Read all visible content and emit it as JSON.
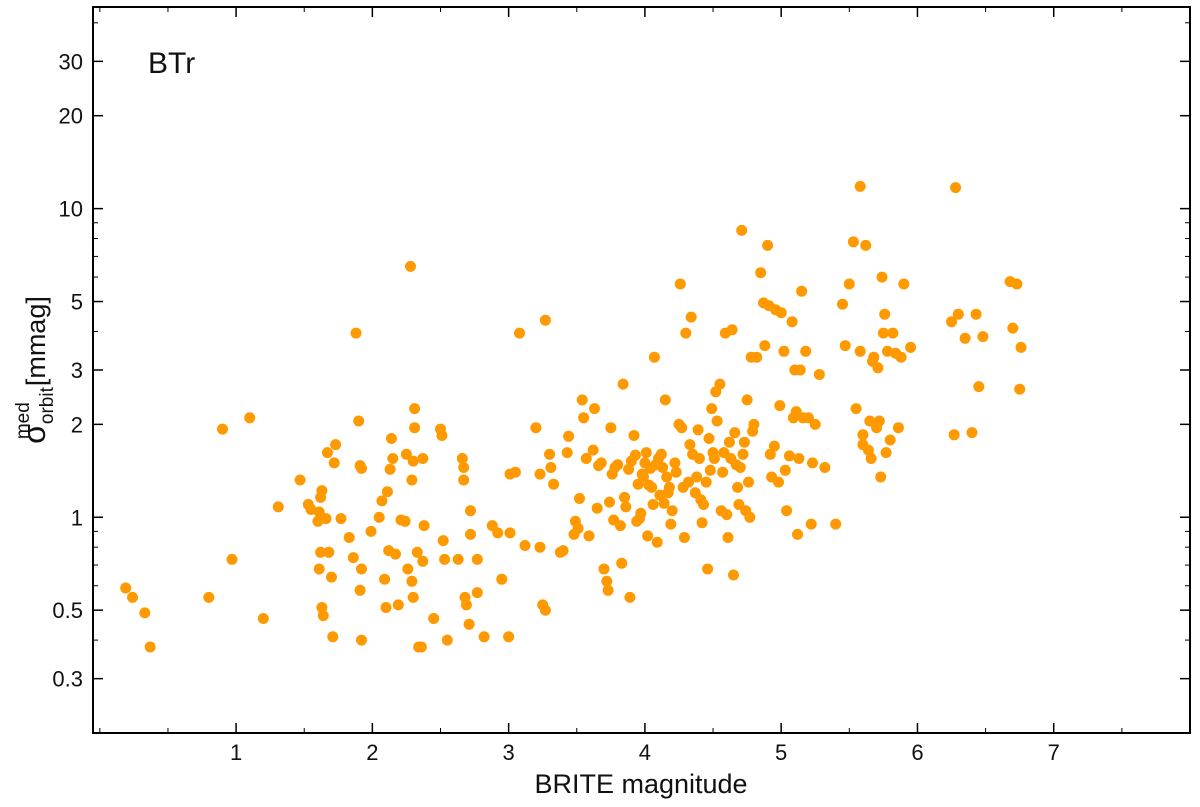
{
  "chart_data": {
    "type": "scatter",
    "panel_label": "BTr",
    "xlabel": "BRITE magnitude",
    "ylabel": {
      "symbol": "σ",
      "sup": "med",
      "sub": "orbit",
      "unit": "[mmag]"
    },
    "y_scale": "log",
    "xlim": [
      -0.05,
      8.0
    ],
    "ylim": [
      0.2,
      45
    ],
    "x_ticks": [
      1,
      2,
      3,
      4,
      5,
      6,
      7
    ],
    "y_ticks": [
      0.3,
      0.5,
      1,
      2,
      3,
      5,
      10,
      20,
      30
    ],
    "y_tick_labels": [
      "0.3",
      "0.5",
      "1",
      "2",
      "3",
      "5",
      "10",
      "20",
      "30"
    ],
    "grid": false,
    "marker_color": "#ff9900",
    "points": [
      [
        0.19,
        0.59
      ],
      [
        0.24,
        0.55
      ],
      [
        0.33,
        0.49
      ],
      [
        0.37,
        0.38
      ],
      [
        0.8,
        0.55
      ],
      [
        0.9,
        1.93
      ],
      [
        0.97,
        0.73
      ],
      [
        1.1,
        2.1
      ],
      [
        1.2,
        0.47
      ],
      [
        1.31,
        1.08
      ],
      [
        1.47,
        1.32
      ],
      [
        1.53,
        1.1
      ],
      [
        1.55,
        1.06
      ],
      [
        1.62,
        1.16
      ],
      [
        1.63,
        1.22
      ],
      [
        1.61,
        1.04
      ],
      [
        1.6,
        0.97
      ],
      [
        1.62,
        0.77
      ],
      [
        1.61,
        0.68
      ],
      [
        1.63,
        0.51
      ],
      [
        1.64,
        0.48
      ],
      [
        1.66,
        0.99
      ],
      [
        1.67,
        1.62
      ],
      [
        1.68,
        0.77
      ],
      [
        1.7,
        0.64
      ],
      [
        1.71,
        0.41
      ],
      [
        1.72,
        1.5
      ],
      [
        1.73,
        1.72
      ],
      [
        1.77,
        0.99
      ],
      [
        1.83,
        0.86
      ],
      [
        1.86,
        0.74
      ],
      [
        1.88,
        3.95
      ],
      [
        1.9,
        2.05
      ],
      [
        1.91,
        1.47
      ],
      [
        1.92,
        1.44
      ],
      [
        1.92,
        0.68
      ],
      [
        1.91,
        0.58
      ],
      [
        1.92,
        0.4
      ],
      [
        1.99,
        0.9
      ],
      [
        2.05,
        1.0
      ],
      [
        2.07,
        1.13
      ],
      [
        2.09,
        0.63
      ],
      [
        2.1,
        0.51
      ],
      [
        2.12,
        0.78
      ],
      [
        2.11,
        1.21
      ],
      [
        2.13,
        1.43
      ],
      [
        2.14,
        1.8
      ],
      [
        2.15,
        1.55
      ],
      [
        2.17,
        0.76
      ],
      [
        2.19,
        0.52
      ],
      [
        2.21,
        0.98
      ],
      [
        2.24,
        0.97
      ],
      [
        2.25,
        1.6
      ],
      [
        2.26,
        0.68
      ],
      [
        2.28,
        6.5
      ],
      [
        2.29,
        1.32
      ],
      [
        2.3,
        1.52
      ],
      [
        2.31,
        1.95
      ],
      [
        2.31,
        2.25
      ],
      [
        2.29,
        0.62
      ],
      [
        2.3,
        0.55
      ],
      [
        2.33,
        0.77
      ],
      [
        2.34,
        0.38
      ],
      [
        2.36,
        0.38
      ],
      [
        2.37,
        1.55
      ],
      [
        2.37,
        0.72
      ],
      [
        2.38,
        0.94
      ],
      [
        2.45,
        0.47
      ],
      [
        2.5,
        1.93
      ],
      [
        2.51,
        1.84
      ],
      [
        2.52,
        0.84
      ],
      [
        2.53,
        0.73
      ],
      [
        2.55,
        0.4
      ],
      [
        2.63,
        0.73
      ],
      [
        2.66,
        1.55
      ],
      [
        2.67,
        1.32
      ],
      [
        2.67,
        1.45
      ],
      [
        2.68,
        0.55
      ],
      [
        2.69,
        0.52
      ],
      [
        2.71,
        0.45
      ],
      [
        2.72,
        1.05
      ],
      [
        2.72,
        0.88
      ],
      [
        2.77,
        0.73
      ],
      [
        2.77,
        0.57
      ],
      [
        2.82,
        0.41
      ],
      [
        2.88,
        0.94
      ],
      [
        2.92,
        0.89
      ],
      [
        2.95,
        0.63
      ],
      [
        3.0,
        0.41
      ],
      [
        3.01,
        0.89
      ],
      [
        3.01,
        1.38
      ],
      [
        3.05,
        1.4
      ],
      [
        3.08,
        3.95
      ],
      [
        3.12,
        0.81
      ],
      [
        3.2,
        1.95
      ],
      [
        3.23,
        0.8
      ],
      [
        3.23,
        1.38
      ],
      [
        3.25,
        0.52
      ],
      [
        3.27,
        4.35
      ],
      [
        3.27,
        0.5
      ],
      [
        3.3,
        1.6
      ],
      [
        3.31,
        1.45
      ],
      [
        3.33,
        1.28
      ],
      [
        3.38,
        0.77
      ],
      [
        3.4,
        0.78
      ],
      [
        3.43,
        1.62
      ],
      [
        3.44,
        1.83
      ],
      [
        3.48,
        0.88
      ],
      [
        3.49,
        0.97
      ],
      [
        3.51,
        0.92
      ],
      [
        3.52,
        1.15
      ],
      [
        3.54,
        2.4
      ],
      [
        3.55,
        2.1
      ],
      [
        3.57,
        1.55
      ],
      [
        3.59,
        0.87
      ],
      [
        3.62,
        1.65
      ],
      [
        3.63,
        2.25
      ],
      [
        3.65,
        1.07
      ],
      [
        3.66,
        1.47
      ],
      [
        3.68,
        1.5
      ],
      [
        3.7,
        0.68
      ],
      [
        3.72,
        0.62
      ],
      [
        3.73,
        0.58
      ],
      [
        3.74,
        1.12
      ],
      [
        3.75,
        1.95
      ],
      [
        3.76,
        1.38
      ],
      [
        3.77,
        0.98
      ],
      [
        3.78,
        1.45
      ],
      [
        3.8,
        1.48
      ],
      [
        3.82,
        0.94
      ],
      [
        3.83,
        0.71
      ],
      [
        3.84,
        2.7
      ],
      [
        3.85,
        1.16
      ],
      [
        3.86,
        1.08
      ],
      [
        3.88,
        1.43
      ],
      [
        3.89,
        0.55
      ],
      [
        3.9,
        1.52
      ],
      [
        3.92,
        1.84
      ],
      [
        3.93,
        1.59
      ],
      [
        3.94,
        0.97
      ],
      [
        3.95,
        1.28
      ],
      [
        3.96,
        0.99
      ],
      [
        3.97,
        1.03
      ],
      [
        3.98,
        1.38
      ],
      [
        3.99,
        1.35
      ],
      [
        4.0,
        1.5
      ],
      [
        4.01,
        1.62
      ],
      [
        4.02,
        0.87
      ],
      [
        4.03,
        1.27
      ],
      [
        4.04,
        1.44
      ],
      [
        4.05,
        1.25
      ],
      [
        4.06,
        1.1
      ],
      [
        4.07,
        3.3
      ],
      [
        4.08,
        1.48
      ],
      [
        4.09,
        0.83
      ],
      [
        4.1,
        1.55
      ],
      [
        4.11,
        1.18
      ],
      [
        4.12,
        1.6
      ],
      [
        4.13,
        1.45
      ],
      [
        4.14,
        1.11
      ],
      [
        4.15,
        2.4
      ],
      [
        4.16,
        1.35
      ],
      [
        4.17,
        1.2
      ],
      [
        4.18,
        1.25
      ],
      [
        4.19,
        0.95
      ],
      [
        4.2,
        1.05
      ],
      [
        4.22,
        1.5
      ],
      [
        4.23,
        1.4
      ],
      [
        4.25,
        2.0
      ],
      [
        4.26,
        5.7
      ],
      [
        4.27,
        1.95
      ],
      [
        4.28,
        1.25
      ],
      [
        4.29,
        0.86
      ],
      [
        4.3,
        3.95
      ],
      [
        4.32,
        1.3
      ],
      [
        4.33,
        1.72
      ],
      [
        4.34,
        4.45
      ],
      [
        4.35,
        1.6
      ],
      [
        4.37,
        1.2
      ],
      [
        4.38,
        1.35
      ],
      [
        4.39,
        1.92
      ],
      [
        4.4,
        1.55
      ],
      [
        4.41,
        1.14
      ],
      [
        4.42,
        0.96
      ],
      [
        4.43,
        1.1
      ],
      [
        4.45,
        1.3
      ],
      [
        4.46,
        0.68
      ],
      [
        4.47,
        1.8
      ],
      [
        4.48,
        1.42
      ],
      [
        4.49,
        2.25
      ],
      [
        4.5,
        1.62
      ],
      [
        4.51,
        1.55
      ],
      [
        4.52,
        2.55
      ],
      [
        4.53,
        2.05
      ],
      [
        4.55,
        2.7
      ],
      [
        4.56,
        1.05
      ],
      [
        4.57,
        1.4
      ],
      [
        4.58,
        1.62
      ],
      [
        4.59,
        3.95
      ],
      [
        4.6,
        1.02
      ],
      [
        4.61,
        0.86
      ],
      [
        4.62,
        1.75
      ],
      [
        4.63,
        1.55
      ],
      [
        4.64,
        4.05
      ],
      [
        4.65,
        0.65
      ],
      [
        4.66,
        1.88
      ],
      [
        4.67,
        1.48
      ],
      [
        4.68,
        1.25
      ],
      [
        4.69,
        1.1
      ],
      [
        4.7,
        1.45
      ],
      [
        4.71,
        8.5
      ],
      [
        4.72,
        1.6
      ],
      [
        4.73,
        1.75
      ],
      [
        4.74,
        1.05
      ],
      [
        4.75,
        2.4
      ],
      [
        4.76,
        1.3
      ],
      [
        4.77,
        1.0
      ],
      [
        4.78,
        3.3
      ],
      [
        4.79,
        1.9
      ],
      [
        4.8,
        2.0
      ],
      [
        4.82,
        3.3
      ],
      [
        4.85,
        6.2
      ],
      [
        4.87,
        4.95
      ],
      [
        4.88,
        3.6
      ],
      [
        4.9,
        7.6
      ],
      [
        4.91,
        4.85
      ],
      [
        4.92,
        1.6
      ],
      [
        4.93,
        1.35
      ],
      [
        4.95,
        1.7
      ],
      [
        4.96,
        4.7
      ],
      [
        4.98,
        1.3
      ],
      [
        4.99,
        2.3
      ],
      [
        5.0,
        4.6
      ],
      [
        5.02,
        3.45
      ],
      [
        5.03,
        1.42
      ],
      [
        5.04,
        1.05
      ],
      [
        5.06,
        1.58
      ],
      [
        5.08,
        4.3
      ],
      [
        5.09,
        2.1
      ],
      [
        5.1,
        3.0
      ],
      [
        5.11,
        2.2
      ],
      [
        5.12,
        0.88
      ],
      [
        5.13,
        1.55
      ],
      [
        5.14,
        3.0
      ],
      [
        5.15,
        5.4
      ],
      [
        5.16,
        2.1
      ],
      [
        5.18,
        3.45
      ],
      [
        5.2,
        2.1
      ],
      [
        5.22,
        0.95
      ],
      [
        5.23,
        1.5
      ],
      [
        5.25,
        2.0
      ],
      [
        5.28,
        2.9
      ],
      [
        5.32,
        1.45
      ],
      [
        5.4,
        0.95
      ],
      [
        5.45,
        4.9
      ],
      [
        5.47,
        3.6
      ],
      [
        5.5,
        5.7
      ],
      [
        5.53,
        7.8
      ],
      [
        5.55,
        2.25
      ],
      [
        5.58,
        11.8
      ],
      [
        5.58,
        3.45
      ],
      [
        5.6,
        1.72
      ],
      [
        5.6,
        1.85
      ],
      [
        5.62,
        7.6
      ],
      [
        5.64,
        1.65
      ],
      [
        5.65,
        2.05
      ],
      [
        5.66,
        1.55
      ],
      [
        5.67,
        3.2
      ],
      [
        5.68,
        3.3
      ],
      [
        5.7,
        1.95
      ],
      [
        5.71,
        3.05
      ],
      [
        5.72,
        2.05
      ],
      [
        5.73,
        1.35
      ],
      [
        5.74,
        6.0
      ],
      [
        5.75,
        3.95
      ],
      [
        5.76,
        4.55
      ],
      [
        5.77,
        1.62
      ],
      [
        5.78,
        3.45
      ],
      [
        5.8,
        1.78
      ],
      [
        5.82,
        3.95
      ],
      [
        5.84,
        3.4
      ],
      [
        5.86,
        1.95
      ],
      [
        5.88,
        3.3
      ],
      [
        5.9,
        5.7
      ],
      [
        5.95,
        3.55
      ],
      [
        6.25,
        4.3
      ],
      [
        6.27,
        1.85
      ],
      [
        6.28,
        11.7
      ],
      [
        6.3,
        4.55
      ],
      [
        6.35,
        3.8
      ],
      [
        6.4,
        1.88
      ],
      [
        6.43,
        4.55
      ],
      [
        6.45,
        2.65
      ],
      [
        6.48,
        3.85
      ],
      [
        6.68,
        5.8
      ],
      [
        6.7,
        4.1
      ],
      [
        6.73,
        5.7
      ],
      [
        6.75,
        2.6
      ],
      [
        6.76,
        3.55
      ]
    ]
  }
}
